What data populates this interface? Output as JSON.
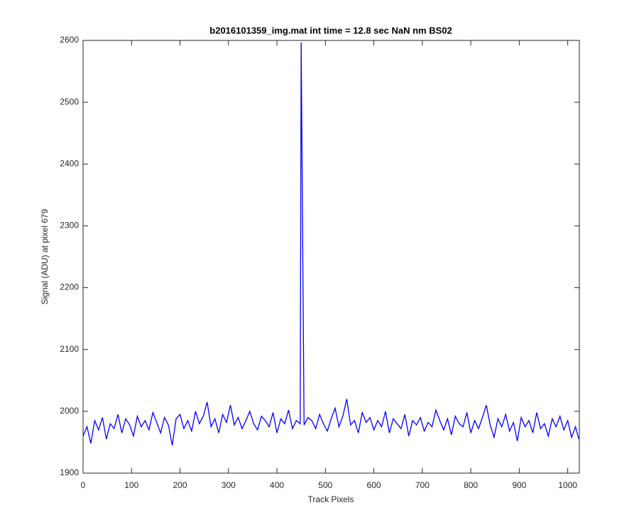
{
  "chart_data": {
    "type": "line",
    "title": "b2016101359_img.mat int time = 12.8 sec  NaN nm BS02",
    "x_label": "Track Pixels",
    "y_label": "Signal (ADU) at pixel 679",
    "xlim": [
      0,
      1024
    ],
    "ylim": [
      1900,
      2600
    ],
    "xticks": [
      0,
      100,
      200,
      300,
      400,
      500,
      600,
      700,
      800,
      900,
      1000
    ],
    "yticks": [
      1900,
      2000,
      2100,
      2200,
      2300,
      2400,
      2500,
      2600
    ],
    "grid": false,
    "series": [
      {
        "color": "#0000ff",
        "x": [
          0,
          8,
          16,
          24,
          32,
          40,
          48,
          56,
          64,
          72,
          80,
          88,
          96,
          104,
          112,
          120,
          128,
          136,
          144,
          152,
          160,
          168,
          176,
          184,
          192,
          200,
          208,
          216,
          224,
          232,
          240,
          248,
          256,
          264,
          272,
          280,
          288,
          296,
          304,
          312,
          320,
          328,
          336,
          344,
          352,
          360,
          368,
          376,
          384,
          392,
          400,
          408,
          416,
          424,
          432,
          440,
          448,
          450,
          456,
          464,
          472,
          480,
          488,
          496,
          504,
          512,
          520,
          528,
          536,
          544,
          552,
          560,
          568,
          576,
          584,
          592,
          600,
          608,
          616,
          624,
          632,
          640,
          648,
          656,
          664,
          672,
          680,
          688,
          696,
          704,
          712,
          720,
          728,
          736,
          744,
          752,
          760,
          768,
          776,
          784,
          792,
          800,
          808,
          816,
          824,
          832,
          840,
          848,
          856,
          864,
          872,
          880,
          888,
          896,
          904,
          912,
          920,
          928,
          936,
          944,
          952,
          960,
          968,
          976,
          984,
          992,
          1000,
          1008,
          1016,
          1023
        ],
        "values": [
          1960,
          1975,
          1948,
          1985,
          1970,
          1990,
          1955,
          1980,
          1972,
          1995,
          1965,
          1988,
          1978,
          1960,
          1992,
          1975,
          1985,
          1970,
          1998,
          1982,
          1965,
          1990,
          1978,
          1945,
          1988,
          1995,
          1972,
          1985,
          1968,
          2000,
          1980,
          1992,
          2015,
          1975,
          1988,
          1965,
          1995,
          1982,
          2010,
          1978,
          1990,
          1972,
          1985,
          2000,
          1980,
          1970,
          1992,
          1985,
          1975,
          1998,
          1965,
          1988,
          1980,
          2002,
          1972,
          1985,
          1980,
          2597,
          1978,
          1990,
          1985,
          1972,
          1995,
          1980,
          1968,
          1988,
          2005,
          1975,
          1992,
          2020,
          1978,
          1985,
          1965,
          1998,
          1982,
          1990,
          1970,
          1985,
          1975,
          2000,
          1965,
          1988,
          1980,
          1972,
          1995,
          1960,
          1985,
          1978,
          1990,
          1968,
          1982,
          1975,
          2002,
          1985,
          1970,
          1988,
          1962,
          1992,
          1980,
          1975,
          1998,
          1965,
          1985,
          1972,
          1990,
          2010,
          1978,
          1958,
          1988,
          1975,
          1995,
          1968,
          1982,
          1952,
          1990,
          1975,
          1985,
          1965,
          1998,
          1972,
          1980,
          1960,
          1988,
          1975,
          1992,
          1970,
          1985,
          1958,
          1975,
          1955
        ]
      }
    ]
  }
}
